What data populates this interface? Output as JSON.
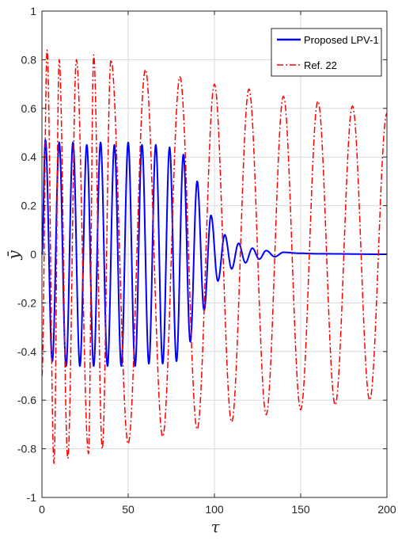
{
  "chart_data": {
    "type": "line",
    "title": "",
    "xlabel": "τ",
    "ylabel": "ȳ",
    "xlim": [
      0,
      200
    ],
    "ylim": [
      -1,
      1
    ],
    "xticks": [
      "0",
      "50",
      "100",
      "150",
      "200"
    ],
    "yticks": [
      "-1",
      "-0.8",
      "-0.6",
      "-0.4",
      "-0.2",
      "0",
      "0.2",
      "0.4",
      "0.6",
      "0.8",
      "1"
    ],
    "grid": true,
    "legend_position": "top-right",
    "series": [
      {
        "name": "Proposed LPV-1",
        "color": "#0000ff",
        "style": "solid",
        "envelope": [
          [
            0,
            0.0
          ],
          [
            2,
            0.47
          ],
          [
            6,
            -0.44
          ],
          [
            10,
            0.46
          ],
          [
            14,
            -0.46
          ],
          [
            18,
            0.46
          ],
          [
            22,
            -0.46
          ],
          [
            26,
            0.45
          ],
          [
            30,
            -0.46
          ],
          [
            34,
            0.46
          ],
          [
            38,
            -0.46
          ],
          [
            42,
            0.45
          ],
          [
            46,
            -0.46
          ],
          [
            50,
            0.46
          ],
          [
            54,
            -0.46
          ],
          [
            58,
            0.45
          ],
          [
            62,
            -0.45
          ],
          [
            66,
            0.45
          ],
          [
            70,
            -0.45
          ],
          [
            74,
            0.44
          ],
          [
            78,
            -0.44
          ],
          [
            82,
            0.41
          ],
          [
            86,
            -0.36
          ],
          [
            90,
            0.3
          ],
          [
            94,
            -0.23
          ],
          [
            98,
            0.16
          ],
          [
            102,
            -0.11
          ],
          [
            106,
            0.08
          ],
          [
            110,
            -0.06
          ],
          [
            114,
            0.045
          ],
          [
            118,
            -0.035
          ],
          [
            122,
            0.025
          ],
          [
            126,
            -0.02
          ],
          [
            130,
            0.015
          ],
          [
            135,
            -0.01
          ],
          [
            140,
            0.008
          ],
          [
            150,
            0.004
          ],
          [
            160,
            0.002
          ],
          [
            200,
            0.0
          ]
        ]
      },
      {
        "name": "Ref. 22",
        "color": "#ff0000",
        "style": "dashdot",
        "envelope": [
          [
            0,
            -0.5
          ],
          [
            3,
            0.84
          ],
          [
            7,
            -0.86
          ],
          [
            10,
            0.8
          ],
          [
            15,
            -0.84
          ],
          [
            20,
            0.8
          ],
          [
            27,
            -0.82
          ],
          [
            30,
            0.82
          ],
          [
            35,
            -0.8
          ],
          [
            40,
            0.8
          ],
          [
            50,
            -0.78
          ],
          [
            60,
            0.76
          ],
          [
            70,
            -0.75
          ],
          [
            80,
            0.73
          ],
          [
            90,
            -0.72
          ],
          [
            100,
            0.7
          ],
          [
            110,
            -0.69
          ],
          [
            120,
            0.68
          ],
          [
            130,
            -0.66
          ],
          [
            140,
            0.65
          ],
          [
            150,
            -0.64
          ],
          [
            160,
            0.63
          ],
          [
            170,
            -0.62
          ],
          [
            180,
            0.61
          ],
          [
            190,
            -0.6
          ],
          [
            200,
            0.58
          ]
        ]
      }
    ]
  }
}
